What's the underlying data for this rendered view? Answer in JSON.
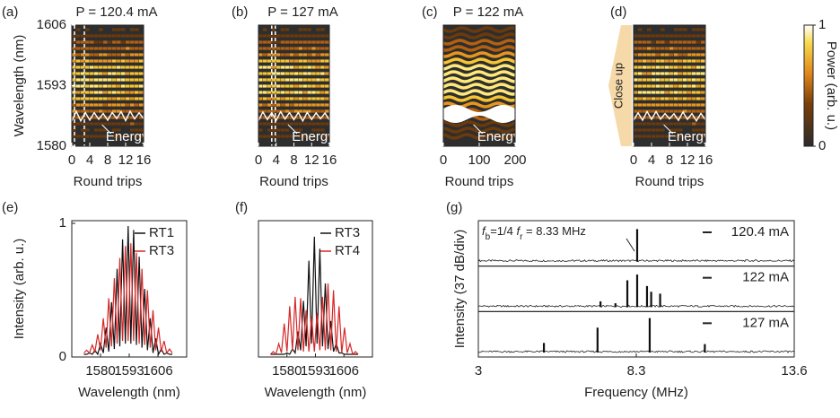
{
  "chart_data": [
    {
      "type": "heatmap",
      "label": "(a)",
      "title": "P = 120.4 mA",
      "xlabel": "Round trips",
      "ylabel": "Wavelength (nm)",
      "xlim": [
        0,
        16
      ],
      "xticks": [
        0,
        4,
        8,
        12,
        16
      ],
      "ylim": [
        1580,
        1606
      ],
      "yticks": [
        1580,
        1593,
        1606
      ],
      "markers": [
        0.6,
        2.8
      ],
      "annotation": "Energy"
    },
    {
      "type": "heatmap",
      "label": "(b)",
      "title": "P = 127 mA",
      "xlabel": "Round trips",
      "xlim": [
        0,
        16
      ],
      "xticks": [
        0,
        4,
        8,
        12,
        16
      ],
      "ylim": [
        1580,
        1606
      ],
      "markers": [
        3,
        3.8
      ],
      "annotation": "Energy"
    },
    {
      "type": "heatmap",
      "label": "(c)",
      "title": "P = 122 mA",
      "xlabel": "Round trips",
      "xlim": [
        0,
        200
      ],
      "xticks": [
        0,
        100,
        200
      ],
      "ylim": [
        1580,
        1606
      ],
      "annotation": "Energy"
    },
    {
      "type": "heatmap",
      "label": "(d)",
      "xlabel": "Round trips",
      "side_label": "Close up",
      "xlim": [
        0,
        16
      ],
      "xticks": [
        0,
        4,
        8,
        12,
        16
      ],
      "ylim": [
        1580,
        1606
      ],
      "annotation": "Energy",
      "colorbar": {
        "label": "Power (arb. u.)",
        "ticks": [
          0,
          1
        ]
      }
    },
    {
      "type": "line",
      "label": "(e)",
      "xlabel": "Wavelength (nm)",
      "ylabel": "Intensity (arb. u.)",
      "xlim": [
        1567,
        1619
      ],
      "xticks": [
        1580,
        1593,
        1606
      ],
      "ylim": [
        0,
        1.02
      ],
      "yticks": [
        0,
        1
      ],
      "x": [
        1572.5,
        1573.75,
        1575,
        1576.25,
        1577.5,
        1578.75,
        1580,
        1581.25,
        1582.5,
        1583.75,
        1585,
        1586.25,
        1587.5,
        1588.75,
        1590,
        1591.25,
        1592.5,
        1593.75,
        1595,
        1596.25,
        1597.5,
        1598.75,
        1600,
        1601.25,
        1602.5,
        1603.75,
        1605,
        1606.25,
        1607.5,
        1608.75,
        1610,
        1611.25,
        1612.5
      ],
      "series": [
        {
          "name": "RT1",
          "color": "#111111",
          "values": [
            0.02,
            0.02,
            0.03,
            0.02,
            0.05,
            0.02,
            0.1,
            0.03,
            0.22,
            0.04,
            0.41,
            0.06,
            0.66,
            0.08,
            0.88,
            0.1,
            0.98,
            0.1,
            0.95,
            0.09,
            0.75,
            0.07,
            0.51,
            0.05,
            0.29,
            0.03,
            0.14,
            0.02,
            0.06,
            0.02,
            0.03,
            0.02,
            0.02
          ]
        },
        {
          "name": "RT3",
          "color": "#d62728",
          "values": [
            0.03,
            0.05,
            0.03,
            0.09,
            0.04,
            0.17,
            0.05,
            0.29,
            0.07,
            0.44,
            0.08,
            0.59,
            0.1,
            0.74,
            0.12,
            0.83,
            0.12,
            0.85,
            0.12,
            0.78,
            0.1,
            0.66,
            0.09,
            0.5,
            0.07,
            0.35,
            0.05,
            0.22,
            0.04,
            0.12,
            0.03,
            0.06,
            0.03
          ]
        }
      ]
    },
    {
      "type": "line",
      "label": "(f)",
      "xlabel": "Wavelength (nm)",
      "xlim": [
        1567,
        1619
      ],
      "xticks": [
        1580,
        1593,
        1606
      ],
      "ylim": [
        0,
        1.02
      ],
      "x": [
        1572.5,
        1573.75,
        1575,
        1576.25,
        1577.5,
        1578.75,
        1580,
        1581.25,
        1582.5,
        1583.75,
        1585,
        1586.25,
        1587.5,
        1588.75,
        1590,
        1591.25,
        1592.5,
        1593.75,
        1595,
        1596.25,
        1597.5,
        1598.75,
        1600,
        1601.25,
        1602.5,
        1603.75,
        1605,
        1606.25,
        1607.5,
        1608.75,
        1610,
        1611.25,
        1612.5
      ],
      "series": [
        {
          "name": "RT3",
          "color": "#111111",
          "values": [
            0.02,
            0.02,
            0.02,
            0.02,
            0.02,
            0.02,
            0.03,
            0.02,
            0.06,
            0.03,
            0.19,
            0.05,
            0.42,
            0.08,
            0.72,
            0.1,
            0.9,
            0.1,
            0.81,
            0.08,
            0.55,
            0.06,
            0.27,
            0.04,
            0.1,
            0.03,
            0.03,
            0.02,
            0.02,
            0.02,
            0.02,
            0.02,
            0.02
          ]
        },
        {
          "name": "RT4",
          "color": "#d62728",
          "values": [
            0.02,
            0.04,
            0.02,
            0.1,
            0.03,
            0.25,
            0.04,
            0.38,
            0.05,
            0.45,
            0.05,
            0.44,
            0.04,
            0.35,
            0.04,
            0.3,
            0.04,
            0.33,
            0.05,
            0.45,
            0.05,
            0.55,
            0.05,
            0.5,
            0.04,
            0.38,
            0.03,
            0.22,
            0.03,
            0.1,
            0.02,
            0.04,
            0.02
          ]
        }
      ]
    },
    {
      "type": "spectra",
      "label": "(g)",
      "xlabel": "Frequency (MHz)",
      "ylabel": "Intensity (37 dB/div)",
      "xlim": [
        3,
        13.6
      ],
      "xticks": [
        3,
        8.3,
        13.6
      ],
      "annotation_parts": [
        "f",
        "b",
        "=1/4 ",
        "f",
        "r",
        " = 8.33 MHz"
      ],
      "series": [
        {
          "name": "120.4 mA",
          "color": "#111111",
          "x": [
            8.33
          ],
          "values": [
            0.85
          ]
        },
        {
          "name": "122 mA",
          "color": "#111111",
          "x": [
            7.1,
            7.6,
            8.0,
            8.33,
            8.66,
            8.8,
            9.1
          ],
          "values": [
            0.15,
            0.1,
            0.7,
            0.85,
            0.55,
            0.4,
            0.35
          ]
        },
        {
          "name": "127 mA",
          "color": "#111111",
          "x": [
            5.2,
            7.0,
            8.75,
            10.6
          ],
          "values": [
            0.25,
            0.65,
            0.9,
            0.22
          ]
        }
      ]
    }
  ]
}
